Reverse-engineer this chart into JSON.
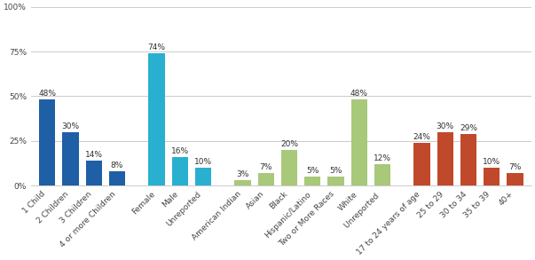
{
  "categories": [
    "1 Child",
    "2 Children",
    "3 Children",
    "4 or more Children",
    "Female",
    "Male",
    "Unreported",
    "American Indian",
    "Asian",
    "Black",
    "Hispanic/Latino",
    "Two or More Races",
    "White",
    "Unreported ",
    "17 to 24 years of age",
    "25 to 29",
    "30 to 34",
    "35 to 39",
    "40+"
  ],
  "values": [
    48,
    30,
    14,
    8,
    74,
    16,
    10,
    3,
    7,
    20,
    5,
    5,
    48,
    12,
    24,
    30,
    29,
    10,
    7
  ],
  "colors": [
    "#1F5FA6",
    "#1F5FA6",
    "#1F5FA6",
    "#1F5FA6",
    "#29B0D0",
    "#29B0D0",
    "#29B0D0",
    "#A8C87A",
    "#A8C87A",
    "#A8C87A",
    "#A8C87A",
    "#A8C87A",
    "#A8C87A",
    "#A8C87A",
    "#C0492B",
    "#C0492B",
    "#C0492B",
    "#C0492B",
    "#C0492B"
  ],
  "group_boundaries": [
    4,
    7,
    14
  ],
  "group_gaps": [
    0.5,
    0.5,
    0.5
  ],
  "ylim": [
    0,
    100
  ],
  "yticks": [
    0,
    25,
    50,
    75,
    100
  ],
  "ytick_labels": [
    "0%",
    "25%",
    "50%",
    "75%",
    "100%"
  ],
  "label_fontsize": 6.5,
  "tick_fontsize": 6.5,
  "bar_width": 0.7,
  "background_color": "#ffffff",
  "figwidth": 6.03,
  "figheight": 2.93,
  "dpi": 100
}
